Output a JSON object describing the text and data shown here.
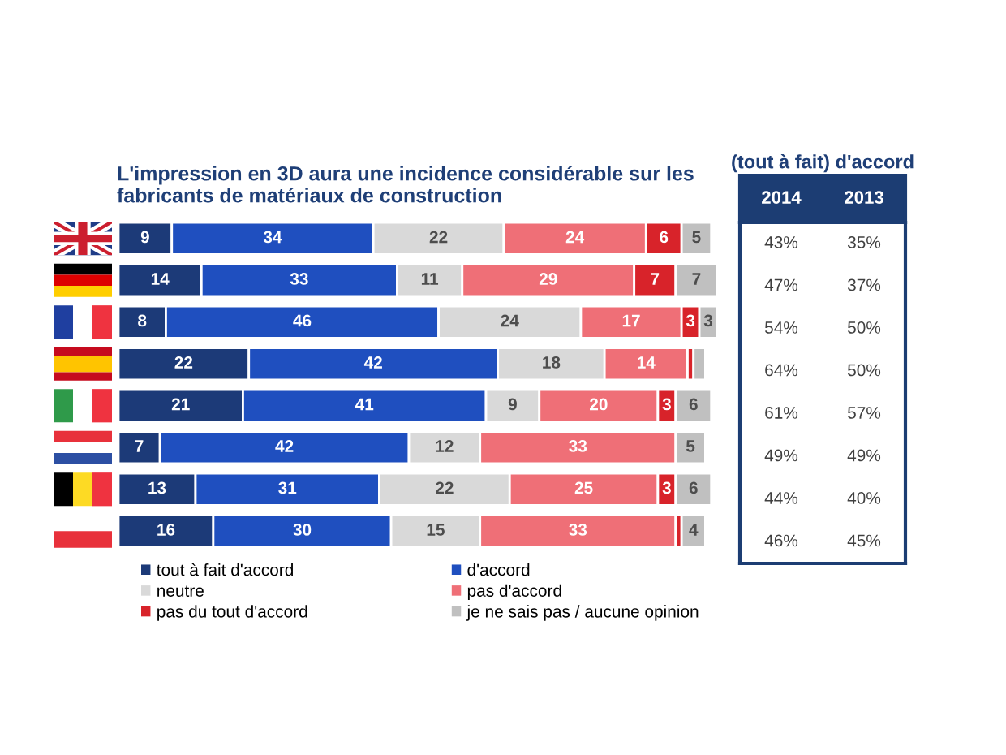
{
  "chart_data": [
    {
      "type": "bar",
      "orientation": "horizontal",
      "stacked": true,
      "title": "L'impression en 3D aura une incidence considérable sur les fabricants de matériaux de construction",
      "categories": [
        null,
        null,
        null,
        null,
        null,
        null,
        null,
        null
      ],
      "xlim": [
        0,
        101
      ],
      "tick_labels": false,
      "legend": "bottom",
      "series": [
        {
          "name": "tout à fait d'accord",
          "color": "#1c3a78",
          "values": [
            9,
            14,
            8,
            22,
            21,
            7,
            13,
            16
          ],
          "value_labels": [
            "9",
            "14",
            "8",
            "22",
            "21",
            "7",
            "13",
            "16"
          ]
        },
        {
          "name": "d'accord",
          "color": "#1f4fbf",
          "values": [
            34,
            33,
            46,
            42,
            41,
            42,
            31,
            30
          ],
          "value_labels": [
            "34",
            "33",
            "46",
            "42",
            "41",
            "42",
            "31",
            "30"
          ]
        },
        {
          "name": "neutre",
          "color": "#d9d9d9",
          "values": [
            22,
            11,
            24,
            18,
            9,
            12,
            22,
            15
          ],
          "value_labels": [
            "22",
            "11",
            "24",
            "18",
            "9",
            "12",
            "22",
            "15"
          ]
        },
        {
          "name": "pas d'accord",
          "color": "#ef6f77",
          "values": [
            24,
            29,
            17,
            14,
            20,
            33,
            25,
            33
          ],
          "value_labels": [
            "24",
            "29",
            "17",
            "14",
            "20",
            "33",
            "25",
            "33"
          ]
        },
        {
          "name": "pas du tout d'accord",
          "color": "#d8232a",
          "values": [
            6,
            7,
            3,
            1,
            3,
            null,
            3,
            1
          ],
          "value_labels": [
            "6",
            "7",
            "3",
            null,
            "3",
            null,
            "3",
            null
          ]
        },
        {
          "name": "je ne sais pas / aucune opinion",
          "color": "#c0c0c0",
          "values": [
            5,
            7,
            3,
            2,
            6,
            5,
            6,
            4
          ],
          "value_labels": [
            "5",
            "7",
            "3",
            null,
            "6",
            "5",
            "6",
            "4"
          ]
        }
      ]
    },
    {
      "type": "other",
      "title": "(tout à fait) d'accord",
      "categories": [
        "2014",
        "2013"
      ],
      "cell_labels": [
        [
          "43%",
          "35%"
        ],
        [
          "47%",
          "37%"
        ],
        [
          "54%",
          "50%"
        ],
        [
          "64%",
          "50%"
        ],
        [
          "61%",
          "57%"
        ],
        [
          "49%",
          "49%"
        ],
        [
          "44%",
          "40%"
        ],
        [
          "46%",
          "45%"
        ]
      ]
    }
  ]
}
